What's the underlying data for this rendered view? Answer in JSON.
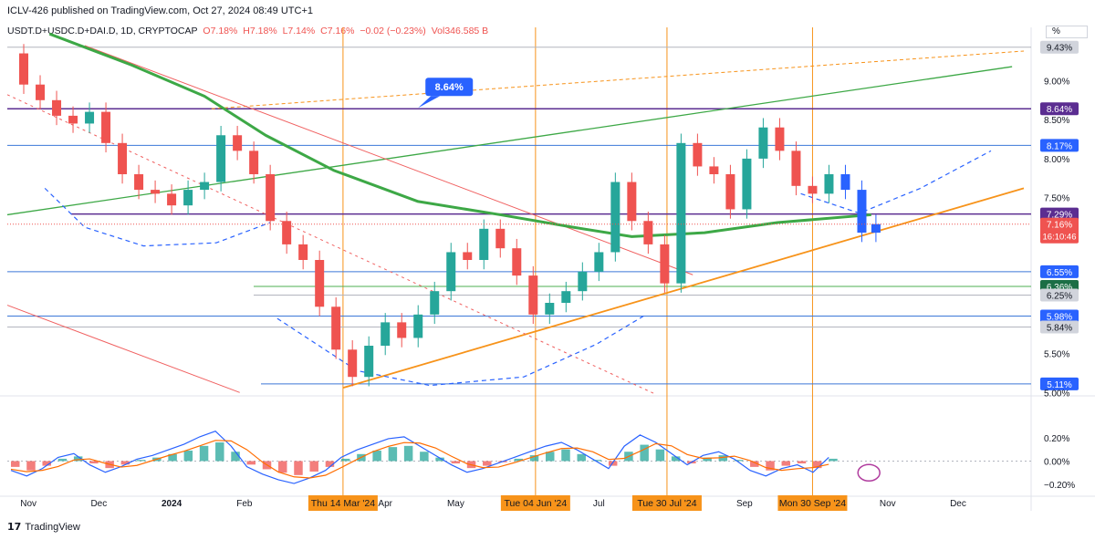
{
  "header": {
    "publisher_line": "ICLV-426 published on TradingView.com, Oct 27, 2024 08:49 UTC+1",
    "symbol": "USDT.D+USDC.D+DAI.D, 1D, CRYPTOCAP",
    "open": "O7.18%",
    "high": "H7.18%",
    "low": "L7.14%",
    "close": "C7.16%",
    "change": "−0.02 (−0.23%)",
    "volume": "Vol346.585 B",
    "scale_button": "%"
  },
  "footer": {
    "brand": "TradingView",
    "logo": "17"
  },
  "colors": {
    "up": "#26a69a",
    "down": "#ef5350",
    "sma": "#3da846",
    "orange": "#f7931a",
    "purple": "#5b2d91",
    "blue_line": "#3c78d8",
    "red_line": "#f06060",
    "macd": "#2962ff",
    "signal": "#ff6d00"
  },
  "chart_data": [
    {
      "type": "candlestick",
      "title": "USDT.D+USDC.D+DAI.D, 1D, CRYPTOCAP",
      "y_unit": "%",
      "ylim": [
        4.98,
        9.52
      ],
      "x_range": [
        "2023-10-23",
        "2024-12-29"
      ],
      "y_ticks": [
        "9.00%",
        "8.50%",
        "8.00%",
        "7.50%",
        "5.50%",
        "5.00%"
      ],
      "x_ticks": [
        "Nov",
        "Dec",
        "2024",
        "Feb",
        "Apr",
        "May",
        "Jul",
        "Sep",
        "Nov",
        "Dec"
      ],
      "highlighted_dates": [
        "Thu 14 Mar '24",
        "Tue 04 Jun '24",
        "Tue 30 Jul '24",
        "Mon 30 Sep '24"
      ],
      "price_levels": [
        {
          "label": "9.43%",
          "value": 9.43,
          "style": "grey"
        },
        {
          "label": "8.64%",
          "value": 8.64,
          "style": "purple"
        },
        {
          "label": "8.17%",
          "value": 8.17,
          "style": "blue"
        },
        {
          "label": "7.29%",
          "value": 7.29,
          "style": "purple"
        },
        {
          "label": "6.55%",
          "value": 6.55,
          "style": "blue"
        },
        {
          "label": "6.36%",
          "value": 6.36,
          "style": "green"
        },
        {
          "label": "6.25%",
          "value": 6.25,
          "style": "grey"
        },
        {
          "label": "5.98%",
          "value": 5.98,
          "style": "blue"
        },
        {
          "label": "5.84%",
          "value": 5.84,
          "style": "grey"
        },
        {
          "label": "5.11%",
          "value": 5.11,
          "style": "blue"
        }
      ],
      "current_price": {
        "label": "7.16%",
        "value": 7.16,
        "countdown": "16:10:46"
      },
      "annotation": {
        "label": "8.64%",
        "value": 8.64
      },
      "sma_path": [
        [
          "2023-11-10",
          9.6
        ],
        [
          "2023-12-15",
          9.2
        ],
        [
          "2024-01-15",
          8.8
        ],
        [
          "2024-02-10",
          8.3
        ],
        [
          "2024-03-10",
          7.85
        ],
        [
          "2024-04-15",
          7.45
        ],
        [
          "2024-05-20",
          7.28
        ],
        [
          "2024-06-20",
          7.12
        ],
        [
          "2024-07-15",
          7.0
        ],
        [
          "2024-08-15",
          7.05
        ],
        [
          "2024-09-15",
          7.18
        ],
        [
          "2024-10-25",
          7.28
        ]
      ],
      "closes": [
        [
          "2023-10-23",
          9.35
        ],
        [
          "2023-10-30",
          8.95
        ],
        [
          "2023-11-06",
          8.75
        ],
        [
          "2023-11-13",
          8.55
        ],
        [
          "2023-11-20",
          8.45
        ],
        [
          "2023-11-27",
          8.6
        ],
        [
          "2023-12-04",
          8.2
        ],
        [
          "2023-12-11",
          7.8
        ],
        [
          "2023-12-18",
          7.6
        ],
        [
          "2023-12-25",
          7.55
        ],
        [
          "2024-01-01",
          7.4
        ],
        [
          "2024-01-08",
          7.6
        ],
        [
          "2024-01-15",
          7.7
        ],
        [
          "2024-01-22",
          8.3
        ],
        [
          "2024-01-29",
          8.1
        ],
        [
          "2024-02-05",
          7.8
        ],
        [
          "2024-02-12",
          7.2
        ],
        [
          "2024-02-19",
          6.9
        ],
        [
          "2024-02-26",
          6.7
        ],
        [
          "2024-03-04",
          6.1
        ],
        [
          "2024-03-11",
          5.55
        ],
        [
          "2024-03-18",
          5.2
        ],
        [
          "2024-03-25",
          5.6
        ],
        [
          "2024-04-01",
          5.9
        ],
        [
          "2024-04-08",
          5.7
        ],
        [
          "2024-04-15",
          6.0
        ],
        [
          "2024-04-22",
          6.3
        ],
        [
          "2024-04-29",
          6.8
        ],
        [
          "2024-05-06",
          6.7
        ],
        [
          "2024-05-13",
          7.1
        ],
        [
          "2024-05-20",
          6.85
        ],
        [
          "2024-05-27",
          6.5
        ],
        [
          "2024-06-03",
          6.0
        ],
        [
          "2024-06-10",
          6.15
        ],
        [
          "2024-06-17",
          6.3
        ],
        [
          "2024-06-24",
          6.55
        ],
        [
          "2024-07-01",
          6.8
        ],
        [
          "2024-07-08",
          7.7
        ],
        [
          "2024-07-15",
          7.2
        ],
        [
          "2024-07-22",
          6.9
        ],
        [
          "2024-07-29",
          6.4
        ],
        [
          "2024-08-05",
          8.2
        ],
        [
          "2024-08-12",
          7.9
        ],
        [
          "2024-08-19",
          7.8
        ],
        [
          "2024-08-26",
          7.35
        ],
        [
          "2024-09-02",
          8.0
        ],
        [
          "2024-09-09",
          8.4
        ],
        [
          "2024-09-16",
          8.1
        ],
        [
          "2024-09-23",
          7.65
        ],
        [
          "2024-09-30",
          7.55
        ],
        [
          "2024-10-07",
          7.8
        ],
        [
          "2024-10-14",
          7.6
        ],
        [
          "2024-10-21",
          7.05
        ],
        [
          "2024-10-27",
          7.16
        ]
      ]
    },
    {
      "type": "macd",
      "y_ticks": [
        "0.20%",
        "0.00%",
        "−0.20%"
      ],
      "ylim": [
        -0.27,
        0.34
      ],
      "histogram": [
        -0.05,
        -0.08,
        -0.04,
        0.02,
        0.04,
        -0.02,
        -0.06,
        -0.03,
        0.01,
        0.03,
        0.06,
        0.09,
        0.13,
        0.16,
        0.08,
        -0.03,
        -0.07,
        -0.1,
        -0.12,
        -0.09,
        -0.05,
        0.02,
        0.06,
        0.09,
        0.12,
        0.13,
        0.08,
        0.03,
        -0.02,
        -0.06,
        -0.04,
        -0.01,
        0.02,
        0.05,
        0.08,
        0.1,
        0.06,
        0.01,
        -0.04,
        0.08,
        0.14,
        0.1,
        0.04,
        -0.02,
        0.03,
        0.05,
        0.01,
        -0.05,
        -0.08,
        -0.04,
        -0.02,
        -0.06,
        0.02
      ]
    }
  ]
}
